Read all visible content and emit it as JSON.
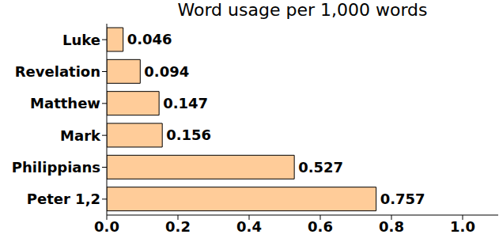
{
  "chart_data": {
    "type": "bar",
    "title": "Word usage per 1,000 words",
    "orientation": "horizontal",
    "categories": [
      "Luke",
      "Revelation",
      "Matthew",
      "Mark",
      "Philippians",
      "Peter 1,2"
    ],
    "values": [
      0.046,
      0.094,
      0.147,
      0.156,
      0.527,
      0.757
    ],
    "color": "#ffcc99",
    "xlim": [
      0,
      1.1
    ],
    "xticks": [
      {
        "value": 0,
        "label": "0.0"
      },
      0.2,
      0.4,
      0.6,
      0.8,
      {
        "value": 1,
        "label": "1.0"
      }
    ],
    "grid": false,
    "data_labels": true
  }
}
